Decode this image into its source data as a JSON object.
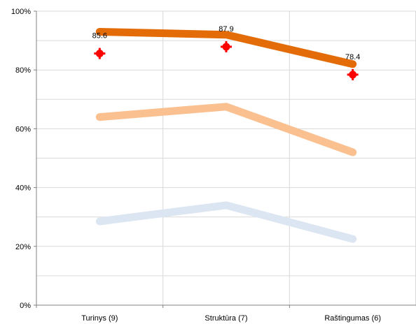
{
  "chart_data": {
    "type": "line",
    "title": "",
    "xlabel": "",
    "ylabel": "",
    "ylim": [
      0,
      100
    ],
    "grid": true,
    "y_ticks": [
      "0%",
      "20%",
      "40%",
      "60%",
      "80%",
      "100%"
    ],
    "categories": [
      "Turinys (9)",
      "Struktūra (7)",
      "Raštingumas (6)"
    ],
    "series": [
      {
        "values": [
          93,
          92,
          82
        ],
        "color": "#e36c09"
      },
      {
        "values": [
          64,
          67.5,
          52
        ],
        "color": "#fac090"
      },
      {
        "values": [
          28.5,
          34,
          22.5
        ],
        "color": "#dce6f2"
      }
    ],
    "markers": {
      "values": [
        85.6,
        87.9,
        78.4
      ],
      "labels": [
        "85.6",
        "87.9",
        "78.4"
      ],
      "color": "#ff0000"
    }
  }
}
